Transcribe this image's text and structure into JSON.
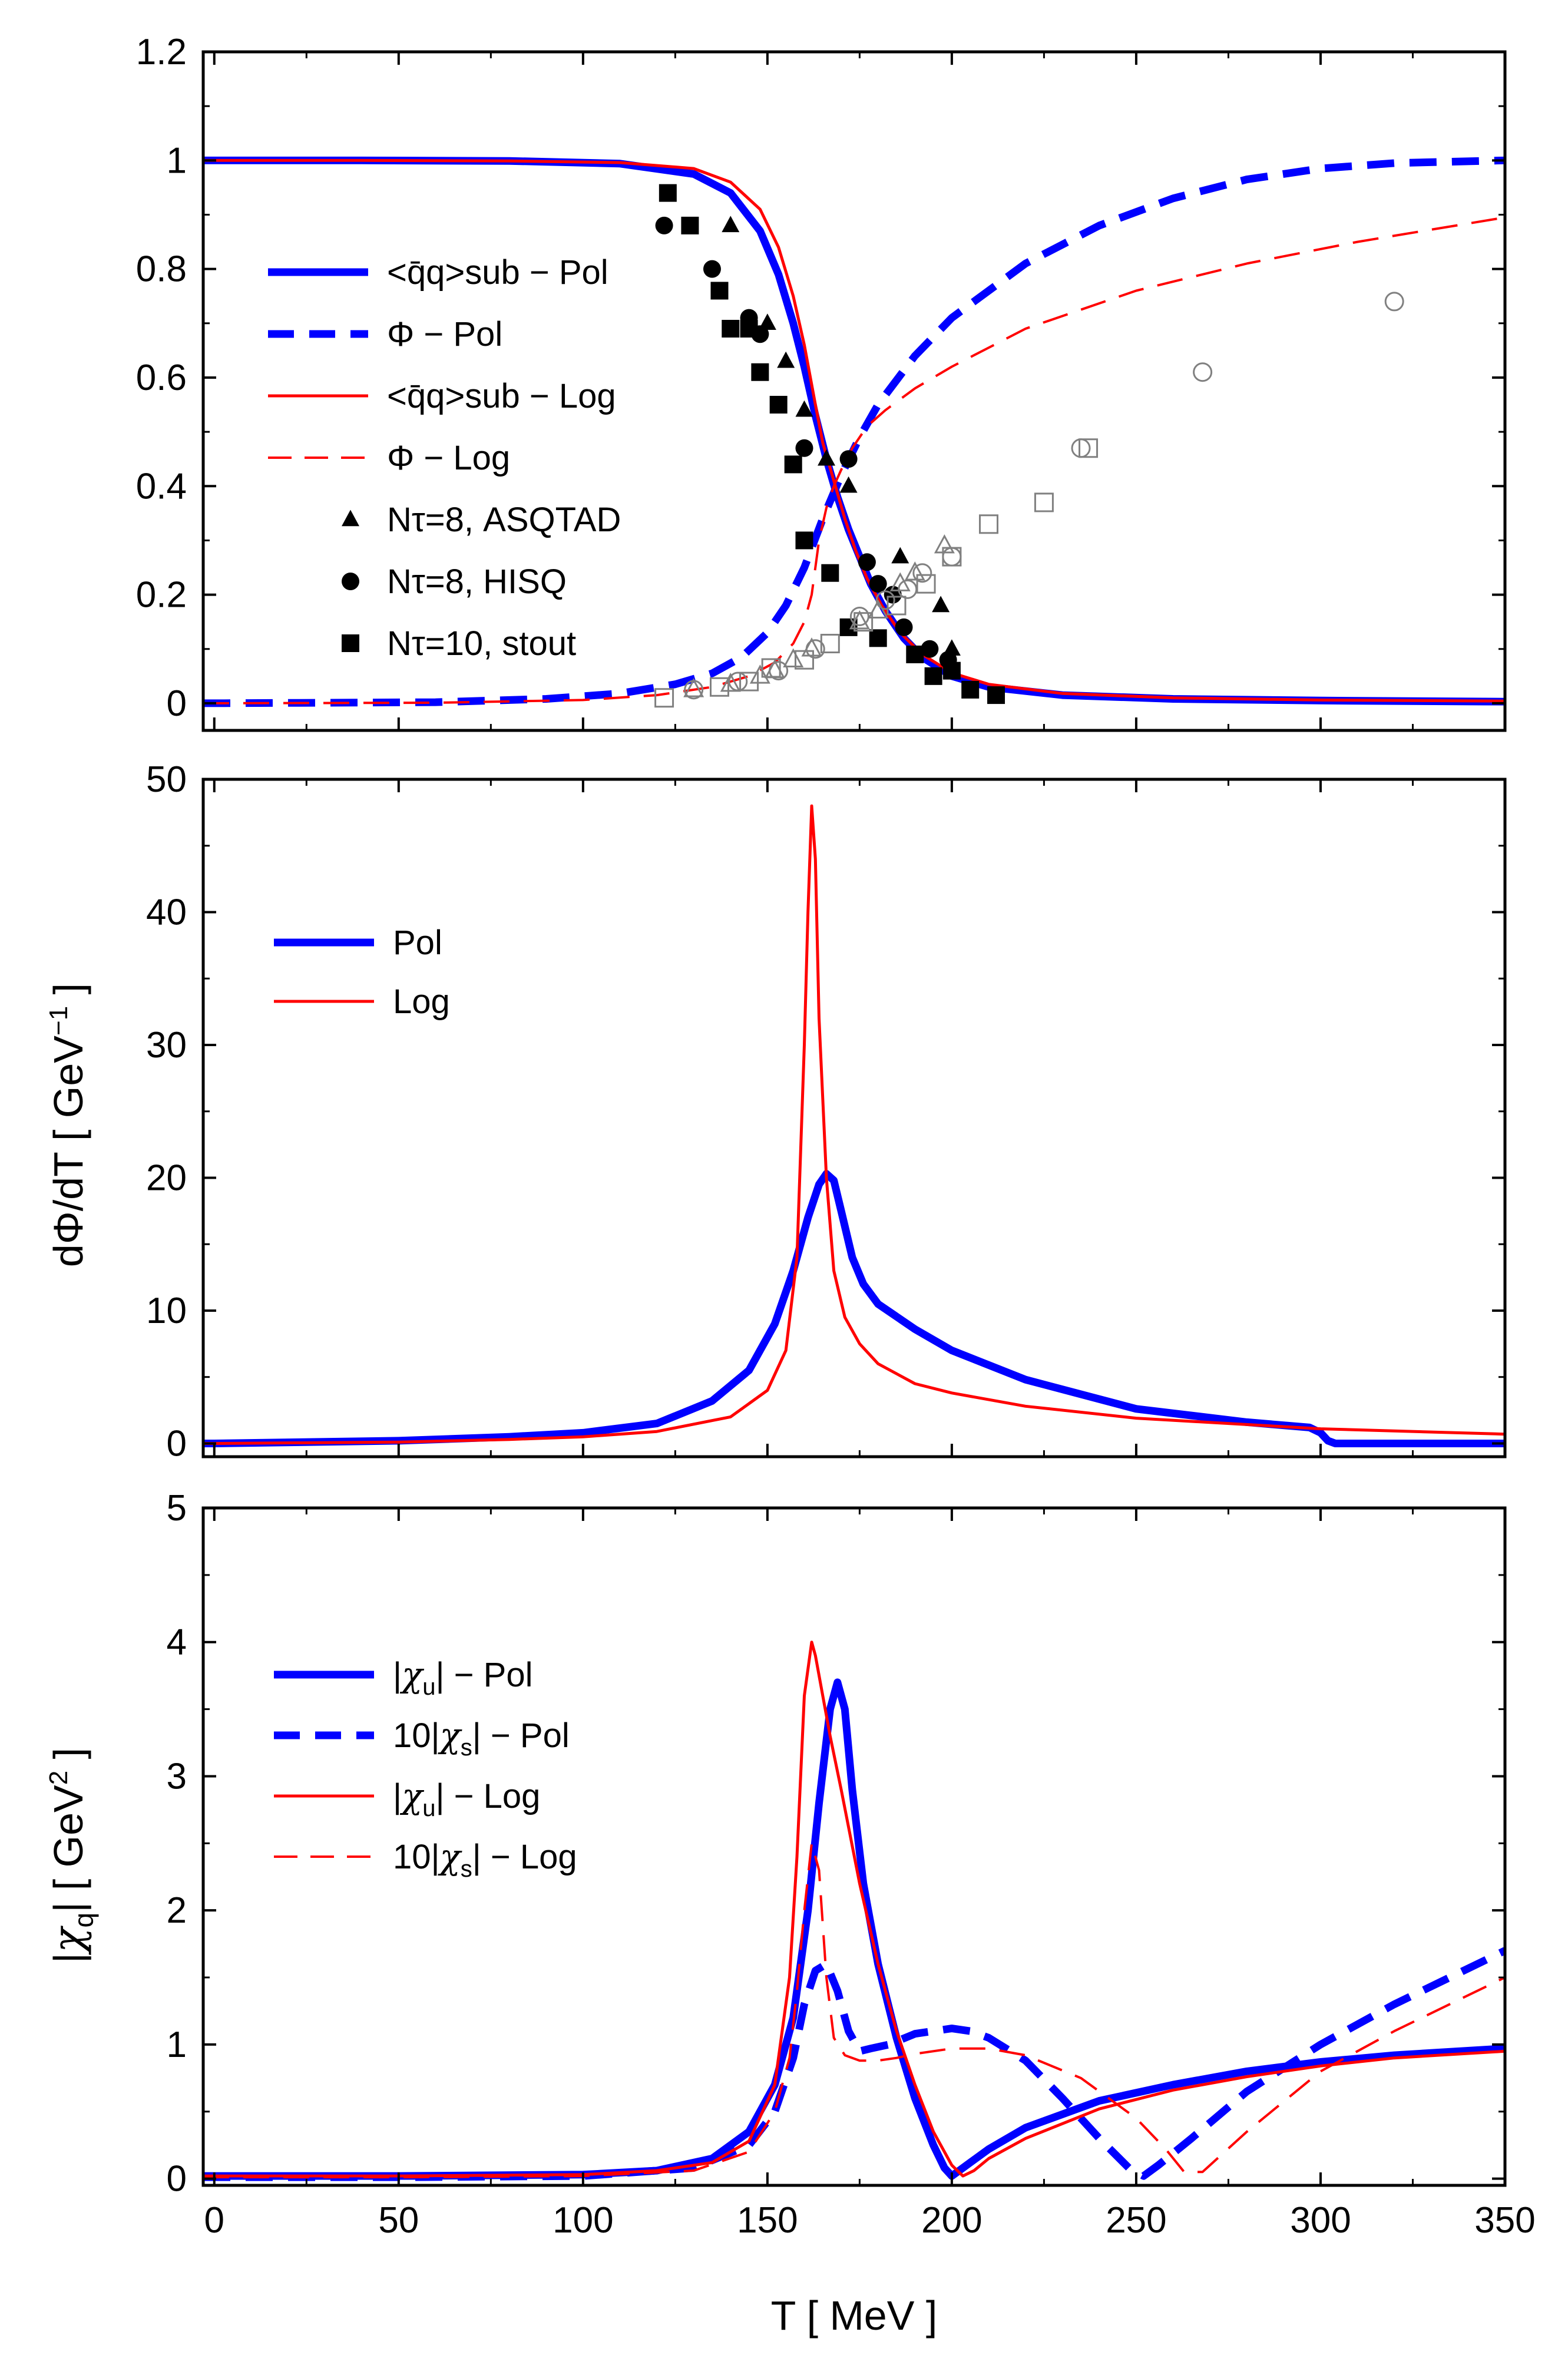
{
  "colors": {
    "pol": "#0000ff",
    "log": "#ff0000",
    "lattice": "#000000",
    "lattice_open": "#808080"
  },
  "chart_data": [
    {
      "id": "p1",
      "type": "line",
      "title": "",
      "xlabel": "",
      "ylabel": "",
      "xlim": [
        -3,
        350
      ],
      "ylim": [
        -0.05,
        1.2
      ],
      "grid": false,
      "xticks": [
        0,
        50,
        100,
        150,
        200,
        250,
        300,
        350
      ],
      "yticks": [
        0,
        0.2,
        0.4,
        0.6,
        0.8,
        1,
        1.2
      ],
      "ytick_labels": [
        "0",
        "0.2",
        "0.4",
        "0.6",
        "0.8",
        "1",
        "1.2"
      ],
      "legend_position": "left",
      "series": [
        {
          "name": "condensate-pol",
          "label": "<q̄q>sub − Pol",
          "style": "pol-solid",
          "x": [
            -3,
            0,
            40,
            80,
            110,
            130,
            140,
            148,
            153,
            157,
            160,
            163,
            166,
            169,
            172,
            175,
            178,
            182,
            187,
            192,
            200,
            210,
            230,
            260,
            300,
            350
          ],
          "y": [
            1,
            1,
            1,
            0.999,
            0.994,
            0.975,
            0.94,
            0.87,
            0.79,
            0.7,
            0.62,
            0.53,
            0.45,
            0.38,
            0.32,
            0.27,
            0.22,
            0.17,
            0.12,
            0.085,
            0.05,
            0.03,
            0.015,
            0.008,
            0.005,
            0.003
          ]
        },
        {
          "name": "phi-pol",
          "label": "Φ − Pol",
          "style": "pol-dash",
          "x": [
            -3,
            0,
            60,
            90,
            110,
            125,
            135,
            143,
            150,
            155,
            160,
            165,
            170,
            175,
            180,
            190,
            200,
            220,
            240,
            260,
            280,
            300,
            320,
            350
          ],
          "y": [
            0,
            0,
            0.002,
            0.008,
            0.018,
            0.035,
            0.055,
            0.085,
            0.13,
            0.18,
            0.25,
            0.34,
            0.42,
            0.49,
            0.55,
            0.64,
            0.71,
            0.81,
            0.88,
            0.93,
            0.965,
            0.985,
            0.995,
            1.0
          ]
        },
        {
          "name": "condensate-log",
          "label": "<q̄q>sub − Log",
          "style": "log-solid",
          "x": [
            -3,
            0,
            40,
            80,
            110,
            130,
            140,
            148,
            153,
            157,
            160,
            163,
            165,
            168,
            171,
            174,
            177,
            181,
            186,
            192,
            200,
            210,
            230,
            260,
            300,
            350
          ],
          "y": [
            1,
            1,
            1,
            0.999,
            0.996,
            0.985,
            0.96,
            0.91,
            0.84,
            0.75,
            0.66,
            0.55,
            0.48,
            0.41,
            0.34,
            0.28,
            0.23,
            0.18,
            0.13,
            0.09,
            0.056,
            0.035,
            0.018,
            0.01,
            0.006,
            0.004
          ]
        },
        {
          "name": "phi-log",
          "label": "Φ − Log",
          "style": "log-dash",
          "x": [
            -3,
            0,
            60,
            100,
            120,
            135,
            145,
            152,
            157,
            160,
            162,
            164,
            166,
            168,
            170,
            173,
            177,
            182,
            190,
            200,
            220,
            250,
            280,
            310,
            350
          ],
          "y": [
            0,
            0,
            0.001,
            0.006,
            0.015,
            0.03,
            0.05,
            0.075,
            0.11,
            0.15,
            0.2,
            0.3,
            0.36,
            0.4,
            0.43,
            0.47,
            0.51,
            0.54,
            0.58,
            0.62,
            0.69,
            0.76,
            0.81,
            0.85,
            0.895
          ]
        },
        {
          "name": "asqtad-condensate",
          "label": "Nτ=8, ASQTAD",
          "style": "tri-filled",
          "x": [
            140,
            150,
            155,
            160,
            166,
            172,
            186,
            197,
            200
          ],
          "y": [
            0.88,
            0.7,
            0.63,
            0.54,
            0.45,
            0.4,
            0.27,
            0.18,
            0.1
          ]
        },
        {
          "name": "hisq-condensate",
          "label": "Nτ=8, HISQ",
          "style": "circ-filled",
          "x": [
            122,
            135,
            145,
            148,
            160,
            172,
            177,
            180,
            184,
            187,
            194,
            199
          ],
          "y": [
            0.88,
            0.8,
            0.71,
            0.68,
            0.47,
            0.45,
            0.26,
            0.22,
            0.2,
            0.14,
            0.1,
            0.08
          ]
        },
        {
          "name": "stout-condensate",
          "label": "Nτ=10, stout",
          "style": "sq-filled",
          "x": [
            123,
            129,
            137,
            140,
            145,
            148,
            153,
            157,
            160,
            167,
            172,
            180,
            190,
            195,
            200,
            205,
            212
          ],
          "y": [
            0.94,
            0.88,
            0.76,
            0.69,
            0.69,
            0.61,
            0.55,
            0.44,
            0.3,
            0.24,
            0.14,
            0.12,
            0.09,
            0.05,
            0.06,
            0.025,
            0.015
          ]
        },
        {
          "name": "asqtad-polyakov",
          "label": "",
          "style": "tri-open",
          "x": [
            130,
            140,
            148,
            152,
            157,
            162,
            175,
            180,
            186,
            190,
            198
          ],
          "y": [
            0.025,
            0.035,
            0.05,
            0.06,
            0.08,
            0.1,
            0.15,
            0.17,
            0.22,
            0.24,
            0.29
          ]
        },
        {
          "name": "hisq-polyakov",
          "label": "",
          "style": "circ-open",
          "x": [
            130,
            142,
            153,
            163,
            175,
            182,
            188,
            192,
            200,
            235,
            268,
            320
          ],
          "y": [
            0.025,
            0.04,
            0.06,
            0.1,
            0.16,
            0.19,
            0.21,
            0.24,
            0.27,
            0.47,
            0.61,
            0.74
          ]
        },
        {
          "name": "stout-polyakov",
          "label": "",
          "style": "sq-open",
          "x": [
            122,
            137,
            145,
            151,
            160,
            167,
            176,
            185,
            193,
            200,
            210,
            225,
            237
          ],
          "y": [
            0.01,
            0.03,
            0.04,
            0.065,
            0.08,
            0.11,
            0.15,
            0.18,
            0.22,
            0.27,
            0.33,
            0.37,
            0.47
          ]
        }
      ]
    },
    {
      "id": "p2",
      "type": "line",
      "title": "",
      "xlabel": "",
      "ylabel": "dΦ/dT [ GeV⁻¹ ]",
      "ylabel_main": "dΦ/dT  [ GeV",
      "ylabel_sup": "−1",
      "ylabel_end": " ]",
      "xlim": [
        -3,
        350
      ],
      "ylim": [
        -1,
        50
      ],
      "grid": false,
      "xticks": [
        0,
        50,
        100,
        150,
        200,
        250,
        300,
        350
      ],
      "yticks": [
        0,
        10,
        20,
        30,
        40,
        50
      ],
      "ytick_labels": [
        "0",
        "10",
        "20",
        "30",
        "40",
        "50"
      ],
      "legend_position": "top-left",
      "series": [
        {
          "name": "dphi-pol",
          "label": "Pol",
          "style": "pol-solid",
          "x": [
            -3,
            0,
            50,
            80,
            100,
            120,
            135,
            145,
            152,
            157,
            161,
            164,
            166,
            168,
            170,
            173,
            176,
            180,
            190,
            200,
            220,
            250,
            280,
            297,
            300,
            302,
            304,
            350
          ],
          "y": [
            0,
            0,
            0.2,
            0.5,
            0.8,
            1.5,
            3.2,
            5.5,
            9,
            13,
            17,
            19.5,
            20.3,
            19.8,
            17.5,
            14,
            12,
            10.5,
            8.6,
            7,
            4.8,
            2.6,
            1.6,
            1.2,
            0.8,
            0.2,
            0,
            0
          ]
        },
        {
          "name": "dphi-log",
          "label": "Log",
          "style": "log-solid",
          "x": [
            -3,
            0,
            50,
            80,
            100,
            120,
            140,
            150,
            155,
            158,
            160,
            161,
            162,
            163,
            164,
            166,
            168,
            171,
            175,
            180,
            190,
            200,
            220,
            250,
            300,
            350
          ],
          "y": [
            0,
            0,
            0.1,
            0.3,
            0.5,
            0.9,
            2,
            4,
            7,
            14,
            30,
            40,
            48,
            44,
            32,
            20,
            13,
            9.5,
            7.5,
            6,
            4.5,
            3.8,
            2.8,
            1.9,
            1.1,
            0.7
          ]
        }
      ]
    },
    {
      "id": "p3",
      "type": "line",
      "title": "",
      "xlabel": "T [ MeV ]",
      "xlabel_display": "T  [ MeV ]",
      "ylabel": "|χ̄q| [ GeV² ]",
      "ylabel_pre": "|",
      "ylabel_chi": "χ",
      "ylabel_bar": "_",
      "ylabel_sub": "q",
      "ylabel_mid": "|  [ GeV",
      "ylabel_sup": "2",
      "ylabel_end": " ]",
      "xlim": [
        -3,
        350
      ],
      "ylim": [
        -0.05,
        5
      ],
      "grid": false,
      "xticks": [
        0,
        50,
        100,
        150,
        200,
        250,
        300,
        350
      ],
      "xtick_labels": [
        "0",
        "50",
        "100",
        "150",
        "200",
        "250",
        "300",
        "350"
      ],
      "yticks": [
        0,
        1,
        2,
        3,
        4,
        5
      ],
      "ytick_labels": [
        "0",
        "1",
        "2",
        "3",
        "4",
        "5"
      ],
      "legend_position": "left",
      "series": [
        {
          "name": "chiu-pol",
          "label": "|χ̄u| − Pol",
          "label_pre": "|",
          "label_chi": "χ",
          "label_sub": "u",
          "label_post": "| − Pol",
          "style": "pol-solid",
          "x": [
            -3,
            0,
            50,
            100,
            120,
            135,
            145,
            152,
            157,
            161,
            164,
            167,
            169,
            171,
            173,
            176,
            180,
            185,
            190,
            195,
            198,
            200,
            202,
            205,
            210,
            220,
            240,
            260,
            280,
            300,
            320,
            350
          ],
          "y": [
            0.02,
            0.02,
            0.02,
            0.03,
            0.06,
            0.15,
            0.35,
            0.7,
            1.2,
            2,
            2.8,
            3.5,
            3.7,
            3.5,
            2.9,
            2.2,
            1.6,
            1.05,
            0.6,
            0.25,
            0.08,
            0.02,
            0.06,
            0.12,
            0.22,
            0.38,
            0.58,
            0.7,
            0.8,
            0.87,
            0.92,
            0.97
          ]
        },
        {
          "name": "chis-pol",
          "label": "10|χ̄s| − Pol",
          "label_pre": "10|",
          "label_chi": "χ",
          "label_sub": "s",
          "label_post": "| − Pol",
          "style": "pol-dash",
          "x": [
            -3,
            0,
            50,
            100,
            130,
            145,
            152,
            157,
            160,
            163,
            166,
            169,
            172,
            175,
            178,
            183,
            190,
            200,
            205,
            210,
            220,
            230,
            240,
            248,
            252,
            256,
            265,
            280,
            300,
            320,
            350
          ],
          "y": [
            0.01,
            0.01,
            0.01,
            0.02,
            0.08,
            0.25,
            0.5,
            0.9,
            1.3,
            1.55,
            1.6,
            1.4,
            1.1,
            0.95,
            0.97,
            1.0,
            1.08,
            1.12,
            1.1,
            1.05,
            0.88,
            0.6,
            0.3,
            0.08,
            0.02,
            0.1,
            0.3,
            0.65,
            1.0,
            1.3,
            1.7
          ]
        },
        {
          "name": "chiu-log",
          "label": "|χ̄u| − Log",
          "label_pre": "|",
          "label_chi": "χ",
          "label_sub": "u",
          "label_post": "| − Log",
          "style": "log-solid",
          "x": [
            -3,
            0,
            50,
            100,
            120,
            135,
            145,
            152,
            156,
            158,
            160,
            162,
            163,
            165,
            167,
            170,
            175,
            180,
            185,
            190,
            195,
            200,
            203,
            206,
            210,
            220,
            240,
            260,
            280,
            300,
            320,
            350
          ],
          "y": [
            0.02,
            0.02,
            0.02,
            0.03,
            0.06,
            0.12,
            0.28,
            0.7,
            1.5,
            2.4,
            3.6,
            4.0,
            3.9,
            3.6,
            3.3,
            2.9,
            2.2,
            1.6,
            1.1,
            0.7,
            0.35,
            0.1,
            0.02,
            0.06,
            0.15,
            0.3,
            0.52,
            0.66,
            0.76,
            0.84,
            0.9,
            0.95
          ]
        },
        {
          "name": "chis-log",
          "label": "10|χ̄s| − Log",
          "label_pre": "10|",
          "label_chi": "χ",
          "label_sub": "s",
          "label_post": "| − Log",
          "style": "log-dash",
          "x": [
            -3,
            0,
            50,
            100,
            130,
            145,
            152,
            156,
            158,
            160,
            162,
            164,
            166,
            168,
            171,
            175,
            180,
            185,
            190,
            200,
            210,
            220,
            235,
            250,
            258,
            263,
            268,
            280,
            300,
            320,
            350
          ],
          "y": [
            0.01,
            0.01,
            0.01,
            0.02,
            0.06,
            0.2,
            0.5,
            0.9,
            1.4,
            2.0,
            2.5,
            2.3,
            1.5,
            1.05,
            0.92,
            0.88,
            0.88,
            0.9,
            0.93,
            0.97,
            0.97,
            0.92,
            0.75,
            0.45,
            0.22,
            0.05,
            0.05,
            0.35,
            0.8,
            1.1,
            1.5
          ]
        }
      ]
    }
  ]
}
